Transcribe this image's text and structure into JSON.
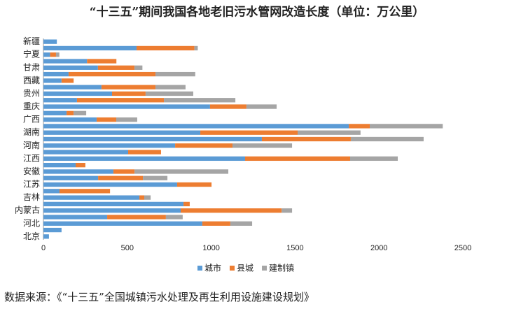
{
  "chart_data": {
    "type": "stacked-bar-horizontal",
    "title": "“十三五”期间我国各地老旧污水管网改造长度（单位：万公里）",
    "source": "数据来源：《“十三五”全国城镇污水处理及再生利用设施建设规划》",
    "categories": [
      "新疆",
      null,
      "宁夏",
      null,
      "甘肃",
      null,
      "西藏",
      null,
      "贵州",
      null,
      "重庆",
      null,
      "广西",
      null,
      "湖南",
      null,
      "河南",
      null,
      "江西",
      null,
      "安徽",
      null,
      "江苏",
      null,
      "吉林",
      null,
      "内蒙古",
      null,
      "河北",
      null,
      "北京"
    ],
    "series": [
      {
        "name": "城市",
        "color": "#5b9bd5",
        "values": [
          80,
          555,
          40,
          260,
          325,
          150,
          108,
          346,
          409,
          200,
          993,
          138,
          317,
          1820,
          935,
          1302,
          785,
          505,
          1202,
          192,
          417,
          326,
          797,
          96,
          572,
          835,
          818,
          380,
          947,
          108,
          33
        ]
      },
      {
        "name": "县城",
        "color": "#ed7d31",
        "values": [
          0,
          345,
          35,
          175,
          218,
          518,
          72,
          322,
          200,
          518,
          217,
          42,
          117,
          125,
          580,
          530,
          342,
          196,
          626,
          58,
          126,
          267,
          205,
          301,
          29,
          37,
          602,
          350,
          167,
          0,
          0
        ]
      },
      {
        "name": "建制镇",
        "color": "#a5a5a5",
        "values": [
          0,
          20,
          20,
          0,
          47,
          237,
          0,
          179,
          284,
          426,
          180,
          75,
          125,
          435,
          375,
          434,
          355,
          0,
          284,
          0,
          559,
          146,
          0,
          0,
          38,
          0,
          62,
          100,
          130,
          0,
          0
        ]
      }
    ],
    "xlim": [
      0,
      2500
    ],
    "xticks": [
      0,
      500,
      1000,
      1500,
      2000,
      2500
    ],
    "legend": "bottom"
  }
}
